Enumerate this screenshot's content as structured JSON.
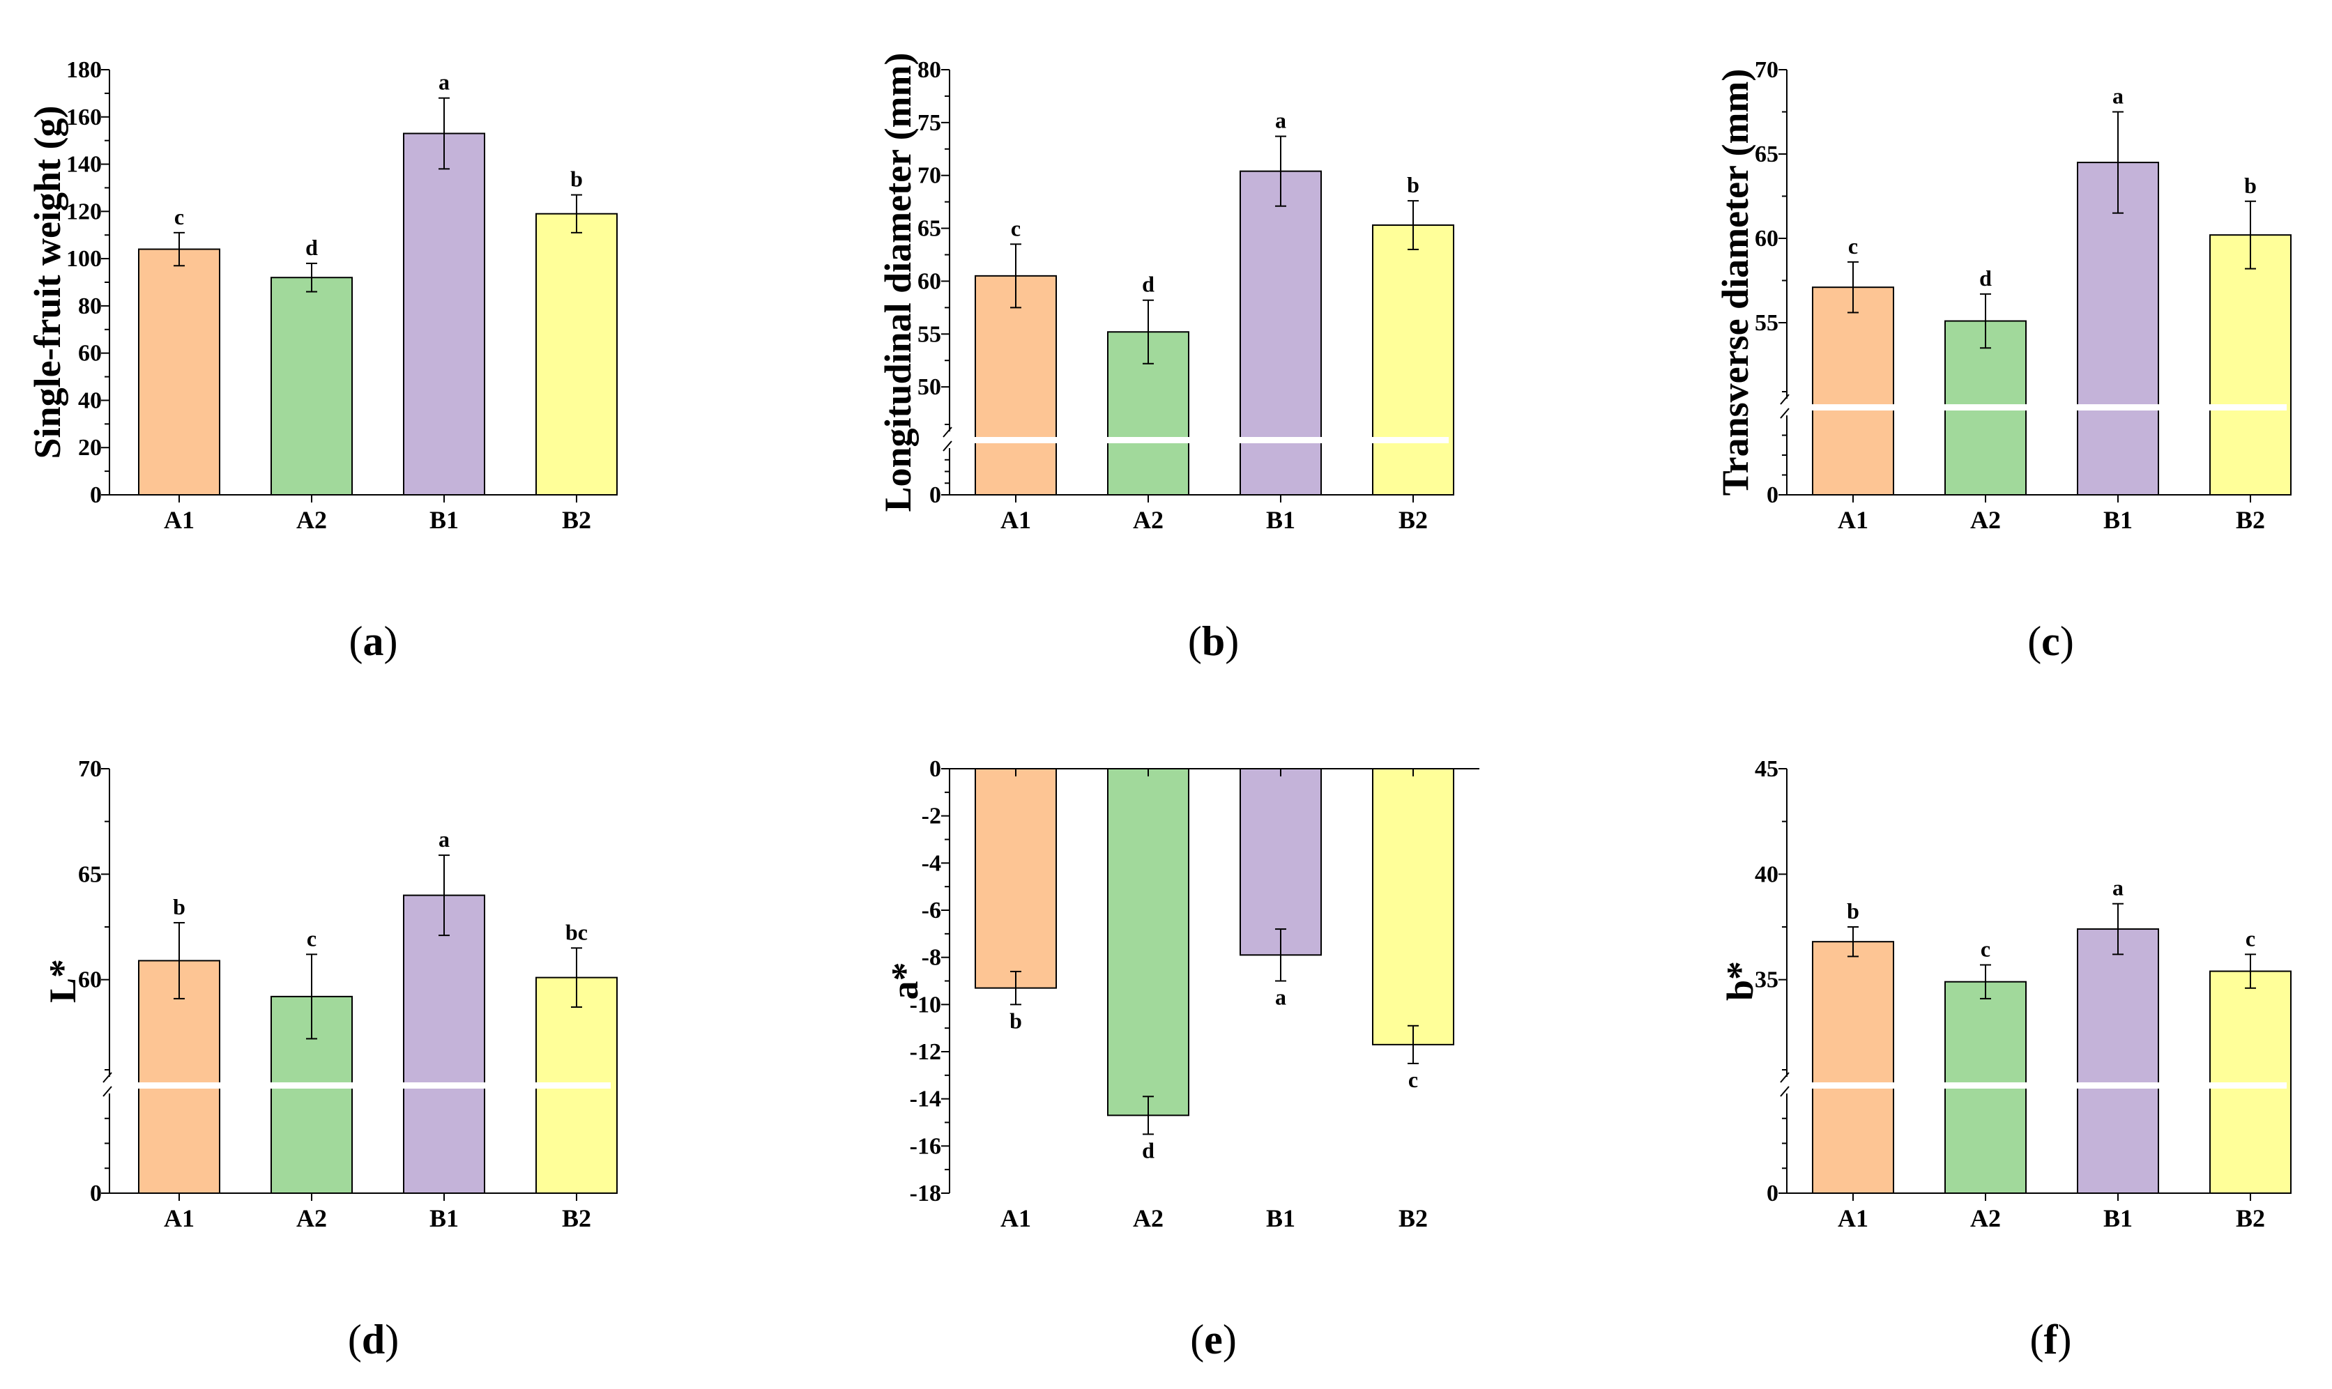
{
  "colors": {
    "A1": "#fdc594",
    "A2": "#a1d99b",
    "B1": "#c4b3d9",
    "B2": "#ffff99",
    "axis": "#000000"
  },
  "chart_data": [
    {
      "id": "a",
      "type": "bar",
      "panel_label": "a",
      "ylabel": "Single-fruit weight  (g)",
      "categories": [
        "A1",
        "A2",
        "B1",
        "B2"
      ],
      "values": [
        104,
        92,
        153,
        119
      ],
      "errors": [
        7,
        6,
        15,
        8
      ],
      "significance": [
        "c",
        "d",
        "a",
        "b"
      ],
      "ylim": [
        0,
        180
      ],
      "yticks": [
        0,
        20,
        40,
        60,
        80,
        100,
        120,
        140,
        160,
        180
      ],
      "axis_break": false
    },
    {
      "id": "b",
      "type": "bar",
      "panel_label": "b",
      "ylabel": "Longitudinal diameter  (mm)",
      "categories": [
        "A1",
        "A2",
        "B1",
        "B2"
      ],
      "values": [
        60.5,
        55.2,
        70.4,
        65.3
      ],
      "errors": [
        3,
        3,
        3.3,
        2.3
      ],
      "significance": [
        "c",
        "d",
        "a",
        "b"
      ],
      "ylim": [
        0,
        80
      ],
      "yticks": [
        0,
        50,
        55,
        60,
        65,
        70,
        75,
        80
      ],
      "axis_break": true,
      "break_value": 45
    },
    {
      "id": "c",
      "type": "bar",
      "panel_label": "c",
      "ylabel": "Transverse diameter  (mm)",
      "categories": [
        "A1",
        "A2",
        "B1",
        "B2"
      ],
      "values": [
        57.1,
        55.1,
        64.5,
        60.2
      ],
      "errors": [
        1.5,
        1.6,
        3,
        2
      ],
      "significance": [
        "c",
        "d",
        "a",
        "b"
      ],
      "ylim": [
        0,
        70
      ],
      "yticks": [
        0,
        55,
        60,
        65,
        70
      ],
      "axis_break": true,
      "break_value": 50
    },
    {
      "id": "d",
      "type": "bar",
      "panel_label": "d",
      "ylabel": "L*",
      "categories": [
        "A1",
        "A2",
        "B1",
        "B2"
      ],
      "values": [
        60.9,
        59.2,
        64.0,
        60.1
      ],
      "errors": [
        1.8,
        2.0,
        1.9,
        1.4
      ],
      "significance": [
        "b",
        "c",
        "a",
        "bc"
      ],
      "ylim": [
        0,
        70
      ],
      "yticks": [
        0,
        60,
        65,
        70
      ],
      "axis_break": true,
      "break_value": 55
    },
    {
      "id": "e",
      "type": "bar",
      "panel_label": "e",
      "ylabel": "a*",
      "categories": [
        "A1",
        "A2",
        "B1",
        "B2"
      ],
      "values": [
        -9.3,
        -14.7,
        -7.9,
        -11.7
      ],
      "errors": [
        0.7,
        0.8,
        1.1,
        0.8
      ],
      "significance": [
        "b",
        "d",
        "a",
        "c"
      ],
      "ylim": [
        -18,
        0
      ],
      "yticks": [
        -18,
        -16,
        -14,
        -12,
        -10,
        -8,
        -6,
        -4,
        -2,
        0
      ],
      "axis_break": false
    },
    {
      "id": "f",
      "type": "bar",
      "panel_label": "f",
      "ylabel": "b*",
      "categories": [
        "A1",
        "A2",
        "B1",
        "B2"
      ],
      "values": [
        36.8,
        34.9,
        37.4,
        35.4
      ],
      "errors": [
        0.7,
        0.8,
        1.2,
        0.8
      ],
      "significance": [
        "b",
        "c",
        "a",
        "c"
      ],
      "ylim": [
        0,
        45
      ],
      "yticks": [
        0,
        35,
        40,
        45
      ],
      "axis_break": true,
      "break_value": 30
    }
  ]
}
